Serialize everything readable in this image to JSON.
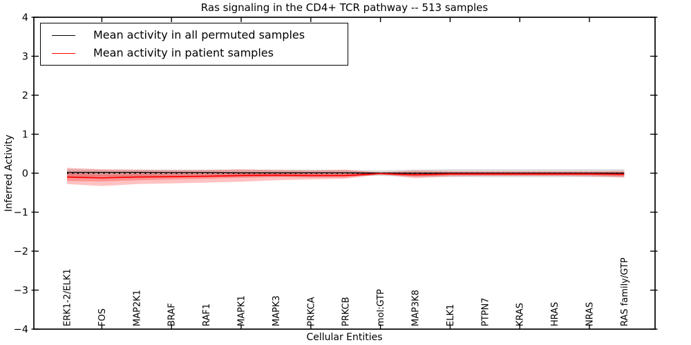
{
  "title": "Ras signaling in the CD4+ TCR pathway -- 513 samples",
  "axes": {
    "x_label": "Cellular Entities",
    "y_label": "Inferred Activity"
  },
  "legend": {
    "entries": [
      {
        "label": "Mean activity in all permuted samples",
        "color": "#000000"
      },
      {
        "label": "Mean activity in patient samples",
        "color": "#ff0000"
      }
    ]
  },
  "chart_data": {
    "type": "line",
    "title": "Ras signaling in the CD4+ TCR pathway -- 513 samples",
    "xlabel": "Cellular Entities",
    "ylabel": "Inferred Activity",
    "ylim": [
      -4,
      4
    ],
    "y_ticks": [
      4,
      3,
      2,
      1,
      0,
      -1,
      -2,
      -3,
      -4
    ],
    "x_tick_indices": [
      1,
      3,
      5,
      7,
      9,
      11,
      13,
      15
    ],
    "grid": false,
    "legend_position": "upper left",
    "categories": [
      "ERK1-2/ELK1",
      "FOS",
      "MAP2K1",
      "BRAF",
      "RAF1",
      "MAPK1",
      "MAPK3",
      "PRKCA",
      "PRKCB",
      "mol:GTP",
      "MAP3K8",
      "ELK1",
      "PTPN7",
      "KRAS",
      "HRAS",
      "NRAS",
      "RAS family/GTP"
    ],
    "zero_line": {
      "value": 0,
      "style": "dotted",
      "color": "#000000"
    },
    "series": [
      {
        "name": "Mean activity in all permuted samples",
        "color": "#000000",
        "band_color": "rgba(0,0,0,0.14)",
        "values": [
          0.02,
          0.02,
          0.02,
          0.015,
          0.015,
          0.01,
          0.01,
          0.01,
          0.01,
          0,
          0,
          0,
          0,
          0,
          0,
          0,
          0
        ],
        "band_upper": [
          0.1,
          0.09,
          0.09,
          0.09,
          0.09,
          0.09,
          0.09,
          0.09,
          0.08,
          0.07,
          0.09,
          0.1,
          0.1,
          0.1,
          0.1,
          0.1,
          0.1
        ],
        "band_lower": [
          -0.1,
          -0.09,
          -0.09,
          -0.09,
          -0.09,
          -0.09,
          -0.09,
          -0.09,
          -0.08,
          -0.07,
          -0.09,
          -0.1,
          -0.1,
          -0.1,
          -0.1,
          -0.1,
          -0.1
        ]
      },
      {
        "name": "Mean activity in patient samples",
        "color": "#ff0000",
        "band_color": "rgba(255,0,0,0.24)",
        "values": [
          -0.1,
          -0.12,
          -0.1,
          -0.09,
          -0.08,
          -0.06,
          -0.05,
          -0.06,
          -0.06,
          -0.01,
          -0.04,
          -0.02,
          -0.02,
          -0.02,
          -0.02,
          -0.02,
          -0.03
        ],
        "band_upper": [
          0.14,
          0.1,
          0.09,
          0.08,
          0.08,
          0.1,
          0.08,
          0.07,
          0.09,
          0.02,
          0.07,
          0.05,
          0.05,
          0.05,
          0.05,
          0.05,
          0.06
        ],
        "band_lower": [
          -0.28,
          -0.33,
          -0.28,
          -0.26,
          -0.24,
          -0.22,
          -0.18,
          -0.16,
          -0.14,
          -0.03,
          -0.13,
          -0.08,
          -0.07,
          -0.07,
          -0.07,
          -0.08,
          -0.11
        ],
        "inner_band_halfwidth": [
          0.1,
          0.09,
          0.08,
          0.07,
          0.06,
          0.06,
          0.05,
          0.05,
          0.05,
          0.015,
          0.045,
          0.035,
          0.035,
          0.035,
          0.035,
          0.035,
          0.045
        ]
      }
    ]
  }
}
